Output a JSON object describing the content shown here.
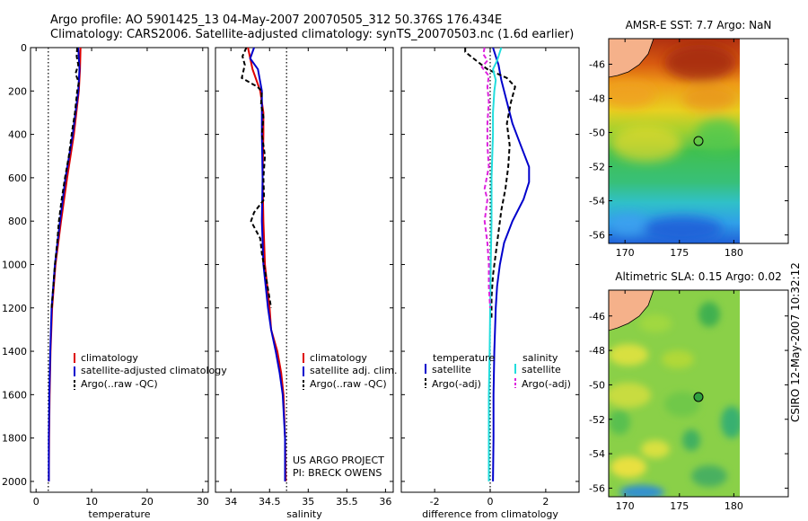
{
  "header": {
    "line1": "Argo profile: AO 5901425_13 04-May-2007 20070505_312 50.376S 176.434E",
    "line2": "Climatology: CARS2006. Satellite-adjusted climatology: synTS_20070503.nc (1.6d earlier)"
  },
  "side_label": "CSIRO 12-May-2007 10:32:12",
  "project_note": [
    "US ARGO PROJECT",
    "PI: BRECK OWENS"
  ],
  "colors": {
    "red": "#dd0000",
    "blue": "#0000cc",
    "black": "#000000",
    "cyan": "#22dddd",
    "magenta": "#dd22dd",
    "land": "#f5b18a"
  },
  "chart_data": [
    {
      "type": "line",
      "id": "temp",
      "xlabel": "temperature",
      "xlim": [
        -1,
        31
      ],
      "ylim": [
        0,
        2050
      ],
      "xticks": [
        0,
        10,
        20,
        30
      ],
      "yticks": [
        0,
        200,
        400,
        600,
        800,
        1000,
        1200,
        1400,
        1600,
        1800,
        2000
      ],
      "ref_line": 2.2,
      "legend": [
        "climatology",
        "satellite-adjusted climatology",
        "Argo(..raw -QC)"
      ],
      "series": [
        {
          "name": "climatology",
          "color": "red",
          "depth": [
            0,
            100,
            200,
            400,
            600,
            800,
            1000,
            1200,
            1400,
            1600,
            1800,
            2000
          ],
          "values": [
            8.0,
            7.9,
            7.7,
            6.8,
            5.6,
            4.5,
            3.5,
            2.9,
            2.6,
            2.45,
            2.35,
            2.3
          ]
        },
        {
          "name": "satellite-adjusted climatology",
          "color": "blue",
          "depth": [
            0,
            100,
            200,
            400,
            600,
            800,
            1000,
            1200,
            1400,
            1600,
            1800,
            2000
          ],
          "values": [
            7.6,
            7.8,
            7.6,
            6.6,
            5.3,
            4.3,
            3.4,
            2.8,
            2.55,
            2.4,
            2.3,
            2.3
          ]
        },
        {
          "name": "Argo(..raw -QC)",
          "color": "black",
          "dash": true,
          "depth": [
            0,
            40,
            80,
            120,
            160,
            200,
            300,
            400,
            500,
            600,
            700,
            800,
            900,
            1000,
            1100,
            1200
          ],
          "values": [
            7.4,
            7.3,
            7.6,
            7.1,
            7.7,
            7.4,
            7.0,
            6.4,
            5.9,
            5.2,
            4.6,
            4.1,
            3.8,
            3.4,
            3.1,
            2.8
          ]
        }
      ]
    },
    {
      "type": "line",
      "id": "sal",
      "xlabel": "salinity",
      "xlim": [
        33.8,
        36.1
      ],
      "ylim": [
        0,
        2050
      ],
      "xticks": [
        34,
        34.5,
        35,
        35.5,
        36
      ],
      "yticks": [
        0,
        200,
        400,
        600,
        800,
        1000,
        1200,
        1400,
        1600,
        1800,
        2000
      ],
      "ref_line": 34.72,
      "legend": [
        "climatology",
        "satellite adj. clim.",
        "Argo(..raw -QC)"
      ],
      "series": [
        {
          "name": "climatology",
          "color": "red",
          "depth": [
            0,
            100,
            200,
            300,
            400,
            600,
            800,
            1000,
            1200,
            1300,
            1400,
            1500,
            1600,
            1800,
            2000
          ],
          "values": [
            34.22,
            34.28,
            34.38,
            34.42,
            34.42,
            34.41,
            34.42,
            34.44,
            34.5,
            34.52,
            34.6,
            34.65,
            34.68,
            34.7,
            34.71
          ]
        },
        {
          "name": "satellite adj. clim.",
          "color": "blue",
          "depth": [
            0,
            50,
            100,
            200,
            300,
            400,
            600,
            800,
            1000,
            1200,
            1300,
            1400,
            1500,
            1600,
            1800,
            2000
          ],
          "values": [
            34.3,
            34.25,
            34.35,
            34.4,
            34.4,
            34.4,
            34.41,
            34.4,
            34.42,
            34.48,
            34.52,
            34.58,
            34.63,
            34.67,
            34.7,
            34.7
          ]
        },
        {
          "name": "Argo(..raw -QC)",
          "color": "black",
          "dash": true,
          "depth": [
            0,
            40,
            80,
            140,
            180,
            200,
            260,
            320,
            400,
            500,
            600,
            700,
            760,
            800,
            880,
            950,
            1050,
            1200
          ],
          "values": [
            34.2,
            34.15,
            34.18,
            34.14,
            34.34,
            34.4,
            34.39,
            34.42,
            34.4,
            34.44,
            34.42,
            34.43,
            34.3,
            34.26,
            34.38,
            34.4,
            34.45,
            34.52
          ]
        }
      ]
    },
    {
      "type": "line",
      "id": "diff",
      "xlabel": "difference from climatology",
      "xlim": [
        -3.2,
        3.2
      ],
      "ylim": [
        0,
        2050
      ],
      "xticks": [
        -2,
        0,
        2
      ],
      "yticks": [
        0,
        200,
        400,
        600,
        800,
        1000,
        1200,
        1400,
        1600,
        1800,
        2000
      ],
      "ref_line": 0,
      "legend_titles": [
        "temperature",
        "salinity"
      ],
      "legend": [
        "satellite",
        "Argo(-adj)",
        "satellite",
        "Argo(-adj)"
      ],
      "series": [
        {
          "name": "temperature satellite",
          "color": "blue",
          "depth": [
            0,
            80,
            150,
            250,
            350,
            450,
            550,
            620,
            700,
            800,
            900,
            1000,
            1100,
            1200,
            1400,
            1600,
            1800,
            2000
          ],
          "values": [
            0.1,
            0.3,
            0.4,
            0.6,
            0.8,
            1.1,
            1.4,
            1.4,
            1.2,
            0.8,
            0.5,
            0.35,
            0.25,
            0.2,
            0.15,
            0.12,
            0.12,
            0.1
          ]
        },
        {
          "name": "temperature Argo(-adj)",
          "color": "black",
          "dash": true,
          "depth": [
            0,
            20,
            60,
            100,
            140,
            180,
            250,
            350,
            450,
            550,
            650,
            750,
            850,
            950,
            1050,
            1150,
            1250
          ],
          "values": [
            -0.9,
            -0.9,
            -0.5,
            -0.1,
            0.6,
            0.9,
            0.75,
            0.6,
            0.7,
            0.65,
            0.55,
            0.4,
            0.3,
            0.2,
            0.1,
            0.05,
            0.05
          ]
        },
        {
          "name": "salinity satellite",
          "color": "cyan",
          "depth": [
            0,
            60,
            100,
            150,
            200,
            300,
            400,
            600,
            800,
            1000,
            1200,
            1400,
            1600,
            1800,
            2000
          ],
          "values": [
            0.4,
            0.25,
            0.1,
            0.2,
            0.15,
            0.1,
            0.1,
            0.05,
            0.05,
            0.02,
            0.0,
            -0.02,
            -0.05,
            -0.05,
            -0.05
          ]
        },
        {
          "name": "salinity Argo(-adj)",
          "color": "magenta",
          "dash": true,
          "depth": [
            0,
            30,
            60,
            90,
            130,
            180,
            250,
            350,
            450,
            550,
            650,
            700,
            800,
            900,
            1000,
            1100,
            1200
          ],
          "values": [
            -0.2,
            -0.25,
            -0.1,
            -0.3,
            -0.05,
            -0.1,
            -0.05,
            -0.1,
            -0.1,
            -0.05,
            -0.2,
            -0.1,
            -0.2,
            -0.1,
            -0.05,
            -0.05,
            0.0
          ]
        }
      ]
    },
    {
      "type": "heatmap",
      "id": "sst",
      "title": "AMSR-E SST: 7.7 Argo: NaN",
      "xlim": [
        168.5,
        185
      ],
      "ylim": [
        -56.5,
        -44.5
      ],
      "xticks": [
        170,
        175,
        180
      ],
      "yticks": [
        -46,
        -48,
        -50,
        -52,
        -54,
        -56
      ],
      "argo_position": [
        176.434,
        -50.376
      ]
    },
    {
      "type": "heatmap",
      "id": "sla",
      "title": "Altimetric SLA: 0.15 Argo: 0.02",
      "xlim": [
        168.5,
        185
      ],
      "ylim": [
        -56.5,
        -44.5
      ],
      "xticks": [
        170,
        175,
        180
      ],
      "yticks": [
        -46,
        -48,
        -50,
        -52,
        -54,
        -56
      ],
      "argo_position": [
        176.434,
        -50.376
      ]
    }
  ]
}
